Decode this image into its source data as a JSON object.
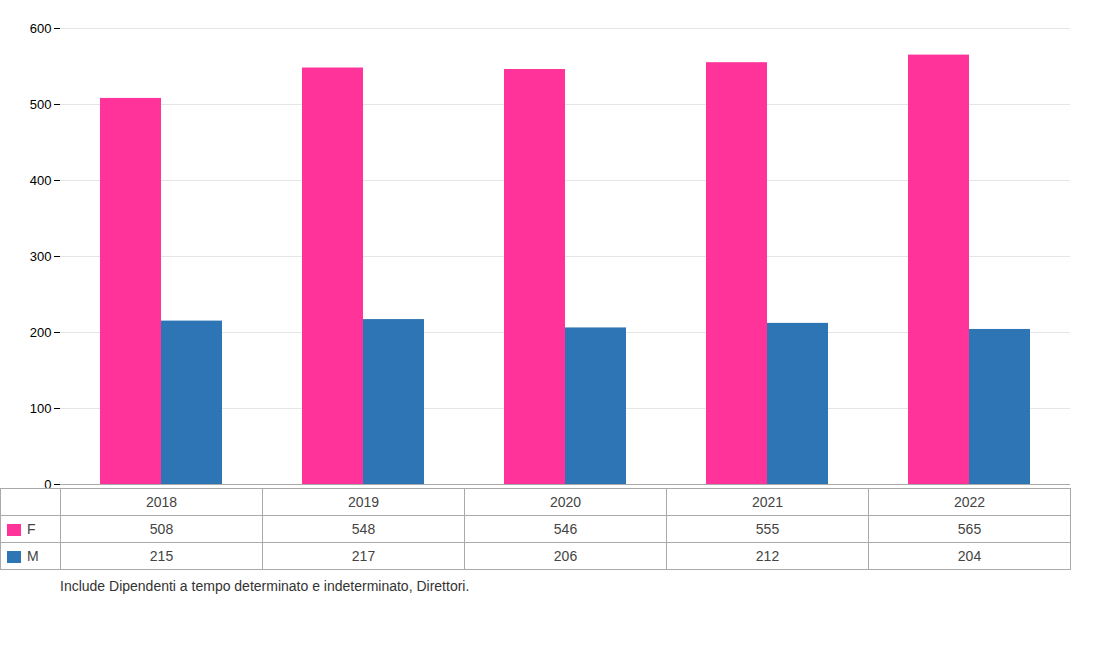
{
  "chart_data": {
    "type": "bar",
    "categories": [
      "2018",
      "2019",
      "2020",
      "2021",
      "2022"
    ],
    "series": [
      {
        "name": "F",
        "color": "#FF3399",
        "values": [
          508,
          548,
          546,
          555,
          565
        ]
      },
      {
        "name": "M",
        "color": "#2E75B6",
        "values": [
          215,
          217,
          206,
          212,
          204
        ]
      }
    ],
    "ylim": [
      0,
      600
    ],
    "yticks": [
      0,
      100,
      200,
      300,
      400,
      500,
      600
    ],
    "grid": true,
    "caption": "Include Dipendenti a tempo determinato e indeterminato, Direttori."
  }
}
